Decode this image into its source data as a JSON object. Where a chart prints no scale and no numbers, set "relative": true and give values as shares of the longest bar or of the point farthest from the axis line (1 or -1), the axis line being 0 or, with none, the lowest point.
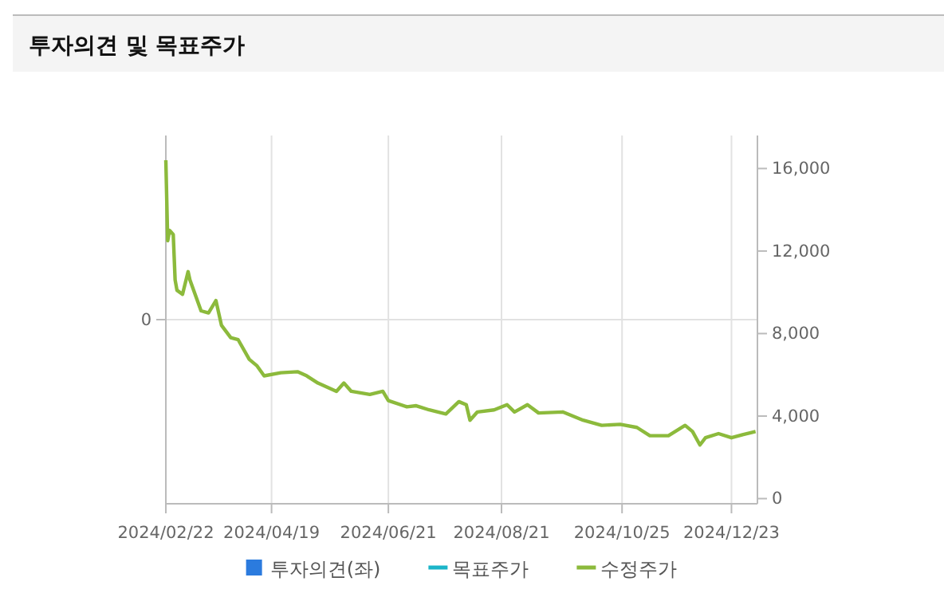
{
  "chart_data": {
    "type": "line",
    "title": "투자의견 및 목표주가",
    "x": [
      "2024-02-22",
      "2024-02-23",
      "2024-02-24",
      "2024-02-26",
      "2024-02-27",
      "2024-02-28",
      "2024-03-02",
      "2024-03-05",
      "2024-03-06",
      "2024-03-12",
      "2024-03-16",
      "2024-03-20",
      "2024-03-23",
      "2024-03-28",
      "2024-04-01",
      "2024-04-07",
      "2024-04-11",
      "2024-04-15",
      "2024-04-24",
      "2024-05-03",
      "2024-05-08",
      "2024-05-14",
      "2024-05-24",
      "2024-05-28",
      "2024-06-01",
      "2024-06-11",
      "2024-06-18",
      "2024-06-21",
      "2024-07-01",
      "2024-07-06",
      "2024-07-13",
      "2024-07-22",
      "2024-07-29",
      "2024-08-02",
      "2024-08-04",
      "2024-08-08",
      "2024-08-17",
      "2024-08-24",
      "2024-08-28",
      "2024-09-04",
      "2024-09-10",
      "2024-09-23",
      "2024-10-04",
      "2024-10-14",
      "2024-10-24",
      "2024-11-02",
      "2024-11-09",
      "2024-11-19",
      "2024-11-28",
      "2024-12-02",
      "2024-12-06",
      "2024-12-09",
      "2024-12-16",
      "2024-12-23",
      "2024-12-29",
      "2025-01-05"
    ],
    "series": [
      {
        "name": "투자의견(좌)",
        "type": "bar",
        "color": "#2b7bde",
        "values": [
          null,
          null,
          null,
          null,
          null,
          null,
          null,
          null,
          null,
          null,
          null,
          null,
          null,
          null,
          null,
          null,
          null,
          null,
          null,
          null,
          null,
          null,
          null,
          null,
          null,
          null,
          null,
          null,
          null,
          null,
          null,
          null,
          null,
          null,
          null,
          null,
          null,
          null,
          null,
          null,
          null,
          null,
          null,
          null,
          null,
          null,
          null,
          null,
          null,
          null,
          null,
          null,
          null,
          null,
          null,
          null
        ]
      },
      {
        "name": "목표주가",
        "color": "#1bb5c9",
        "axis": "y2",
        "values": [
          null,
          null,
          null,
          null,
          null,
          null,
          null,
          null,
          null,
          null,
          null,
          null,
          null,
          null,
          null,
          null,
          null,
          null,
          null,
          null,
          null,
          null,
          null,
          null,
          null,
          null,
          null,
          null,
          null,
          null,
          null,
          null,
          null,
          null,
          null,
          null,
          null,
          null,
          null,
          null,
          null,
          null,
          null,
          null,
          null,
          null,
          null,
          null,
          null,
          null,
          null,
          null,
          null,
          null,
          null,
          null
        ]
      },
      {
        "name": "수정주가",
        "color": "#8cba3c",
        "axis": "y2",
        "values": [
          16400,
          12500,
          13000,
          12800,
          10600,
          10100,
          9900,
          11000,
          10600,
          9100,
          9000,
          9600,
          8400,
          7800,
          7700,
          6750,
          6450,
          5950,
          6100,
          6150,
          5950,
          5600,
          5200,
          5600,
          5200,
          5050,
          5200,
          4750,
          4450,
          4500,
          4300,
          4100,
          4700,
          4550,
          3800,
          4200,
          4300,
          4550,
          4200,
          4550,
          4150,
          4200,
          3800,
          3550,
          3600,
          3450,
          3050,
          3050,
          3550,
          3250,
          2600,
          2950,
          3150,
          2950,
          3100,
          3250
        ]
      }
    ],
    "xlim": [
      "2024-02-22",
      "2025-01-06"
    ],
    "xticks": [
      {
        "value": "2024-02-22",
        "label": "2024/02/22"
      },
      {
        "value": "2024-04-19",
        "label": "2024/04/19"
      },
      {
        "value": "2024-06-21",
        "label": "2024/06/21"
      },
      {
        "value": "2024-08-21",
        "label": "2024/08/21"
      },
      {
        "value": "2024-10-25",
        "label": "2024/10/25"
      },
      {
        "value": "2024-12-23",
        "label": "2024/12/23"
      }
    ],
    "relative": true,
    "annotations": [
      "0"
    ],
    "y2lim": [
      -250,
      17600
    ],
    "y2ticks": [
      {
        "value": 0,
        "label": "0"
      },
      {
        "value": 4000,
        "label": "4,000"
      },
      {
        "value": 8000,
        "label": "8,000"
      },
      {
        "value": 12000,
        "label": "12,000"
      },
      {
        "value": 16000,
        "label": "16,000"
      }
    ],
    "grid": true,
    "legend": "bottom",
    "marker": "none",
    "line_style": "solid"
  }
}
